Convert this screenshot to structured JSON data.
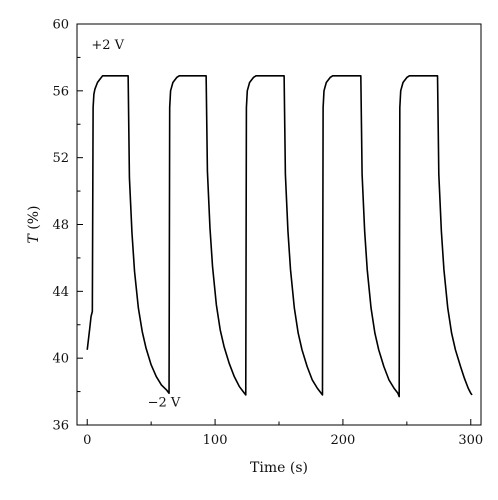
{
  "chart_data": {
    "type": "line",
    "title": "",
    "xlabel": "Time (s)",
    "ylabel": "T (%)",
    "ylabel_parts": {
      "var": "T",
      "unit": " (%)"
    },
    "xlim": [
      -8,
      308
    ],
    "ylim": [
      36,
      60
    ],
    "x_ticks": [
      0,
      100,
      200,
      300
    ],
    "x_tick_labels": [
      "0",
      "100",
      "200",
      "300"
    ],
    "y_ticks": [
      36,
      40,
      44,
      48,
      52,
      56,
      60
    ],
    "y_tick_labels": [
      "36",
      "40",
      "44",
      "48",
      "52",
      "56",
      "60"
    ],
    "grid": false,
    "legend": "none",
    "line_color": "#000000",
    "annotations": [
      {
        "text": "+2 V",
        "x": 16,
        "y": 58.5
      },
      {
        "text": "−2 V",
        "x": 60,
        "y": 37.1
      }
    ],
    "series": [
      {
        "name": "",
        "points": [
          [
            0,
            40.5
          ],
          [
            2,
            41.8
          ],
          [
            3,
            42.5
          ],
          [
            4,
            42.8
          ],
          [
            4.6,
            55.0
          ],
          [
            5.2,
            55.8
          ],
          [
            6,
            56.1
          ],
          [
            8,
            56.5
          ],
          [
            10,
            56.7
          ],
          [
            12,
            56.9
          ],
          [
            20,
            56.9
          ],
          [
            28,
            56.9
          ],
          [
            32,
            56.9
          ],
          [
            33,
            50.8
          ],
          [
            35,
            47.5
          ],
          [
            37,
            45.2
          ],
          [
            40,
            43.0
          ],
          [
            43,
            41.6
          ],
          [
            46,
            40.6
          ],
          [
            50,
            39.6
          ],
          [
            54,
            38.9
          ],
          [
            58,
            38.4
          ],
          [
            62,
            38.1
          ],
          [
            64,
            37.9
          ],
          [
            64.5,
            55.0
          ],
          [
            65.2,
            56.0
          ],
          [
            67,
            56.5
          ],
          [
            70,
            56.8
          ],
          [
            72,
            56.9
          ],
          [
            80,
            56.9
          ],
          [
            88,
            56.9
          ],
          [
            93,
            56.9
          ],
          [
            94,
            51.2
          ],
          [
            96,
            47.8
          ],
          [
            98,
            45.5
          ],
          [
            101,
            43.2
          ],
          [
            104,
            41.7
          ],
          [
            107,
            40.7
          ],
          [
            111,
            39.7
          ],
          [
            115,
            38.9
          ],
          [
            119,
            38.3
          ],
          [
            122,
            38.0
          ],
          [
            124,
            37.8
          ],
          [
            124.5,
            55.0
          ],
          [
            125.2,
            56.0
          ],
          [
            127,
            56.5
          ],
          [
            130,
            56.8
          ],
          [
            132,
            56.9
          ],
          [
            140,
            56.9
          ],
          [
            148,
            56.9
          ],
          [
            154,
            56.9
          ],
          [
            155,
            51.0
          ],
          [
            157,
            47.6
          ],
          [
            159,
            45.3
          ],
          [
            162,
            43.0
          ],
          [
            165,
            41.5
          ],
          [
            168,
            40.5
          ],
          [
            172,
            39.5
          ],
          [
            176,
            38.7
          ],
          [
            180,
            38.2
          ],
          [
            183,
            37.9
          ],
          [
            184,
            37.8
          ],
          [
            184.5,
            55.0
          ],
          [
            185.2,
            56.0
          ],
          [
            187,
            56.5
          ],
          [
            190,
            56.8
          ],
          [
            192,
            56.9
          ],
          [
            200,
            56.9
          ],
          [
            208,
            56.9
          ],
          [
            214,
            56.9
          ],
          [
            215,
            51.0
          ],
          [
            217,
            47.6
          ],
          [
            219,
            45.3
          ],
          [
            222,
            43.0
          ],
          [
            225,
            41.5
          ],
          [
            228,
            40.5
          ],
          [
            232,
            39.5
          ],
          [
            236,
            38.7
          ],
          [
            240,
            38.2
          ],
          [
            243,
            37.9
          ],
          [
            244,
            37.7
          ],
          [
            244.5,
            55.0
          ],
          [
            245.2,
            56.0
          ],
          [
            247,
            56.5
          ],
          [
            250,
            56.8
          ],
          [
            252,
            56.9
          ],
          [
            260,
            56.9
          ],
          [
            268,
            56.9
          ],
          [
            274,
            56.9
          ],
          [
            275,
            51.0
          ],
          [
            277,
            47.6
          ],
          [
            279,
            45.3
          ],
          [
            282,
            43.0
          ],
          [
            285,
            41.5
          ],
          [
            288,
            40.5
          ],
          [
            292,
            39.5
          ],
          [
            295,
            38.8
          ],
          [
            298,
            38.2
          ],
          [
            300,
            37.9
          ],
          [
            301,
            37.8
          ]
        ]
      }
    ]
  }
}
